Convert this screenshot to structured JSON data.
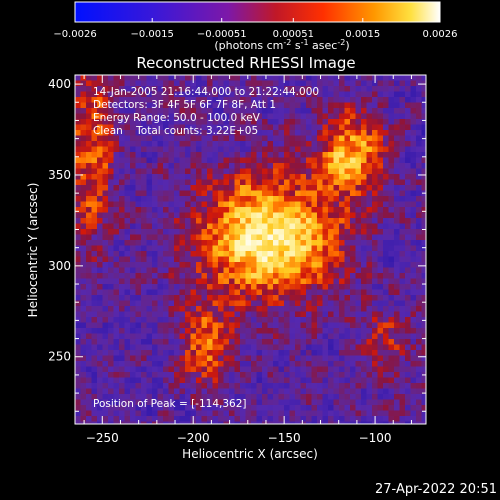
{
  "colorbar": {
    "ticks": [
      "-0.0026",
      "-0.0015",
      "-0.00051",
      "0.00051",
      "0.0015",
      "0.0026"
    ],
    "unit_prefix": "(photons cm",
    "unit_exp1": "-2",
    "unit_mid": " s",
    "unit_exp2": "-1",
    "unit_mid2": " asec",
    "unit_exp3": "-2",
    "unit_suffix": ")"
  },
  "chart_data": {
    "type": "heatmap",
    "title": "Reconstructed RHESSI Image",
    "xlabel": "Heliocentric X (arcsec)",
    "ylabel": "Heliocentric Y (arcsec)",
    "xlim": [
      -265,
      -72
    ],
    "ylim": [
      213,
      405
    ],
    "x_ticks": [
      -250,
      -200,
      -150,
      -100
    ],
    "y_ticks": [
      250,
      300,
      350,
      400
    ],
    "x_tick_labels": [
      "−250",
      "−200",
      "−150",
      "−100"
    ],
    "y_tick_labels": [
      "250",
      "300",
      "350",
      "400"
    ],
    "colorscale_range": [
      -0.0026,
      0.0026
    ],
    "peak": [
      -114,
      362
    ],
    "annotations": [
      "14-Jan-2005 21:16:44.000 to 21:22:44.000",
      "Detectors: 3F 4F 5F 6F 7F 8F, Att 1",
      "Energy Range: 50.0 - 100.0 keV",
      "Clean    Total counts: 3.22E+05",
      "Position of Peak = [-114,362]"
    ]
  },
  "footer": {
    "date": "27-Apr-2022 20:51"
  }
}
